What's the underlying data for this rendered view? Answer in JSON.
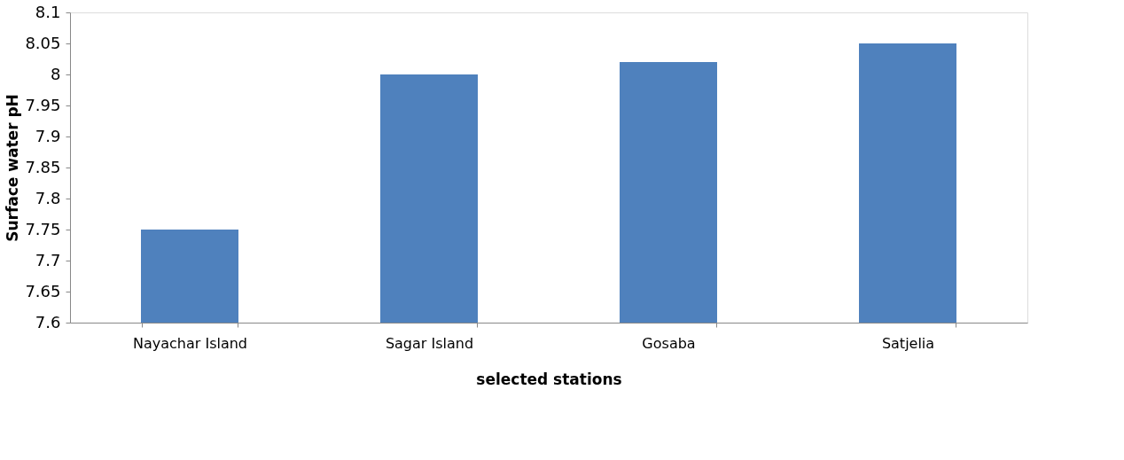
{
  "chart_data": {
    "type": "bar",
    "xlabel": "selected stations",
    "ylabel": "Surface water pH",
    "categories": [
      "Nayachar Island",
      "Sagar Island",
      "Gosaba",
      "Satjelia"
    ],
    "values": [
      7.75,
      8.0,
      8.02,
      8.05
    ],
    "color": "#4f81bd",
    "ylim": [
      7.6,
      8.1
    ],
    "yticks": [
      7.6,
      7.65,
      7.7,
      7.75,
      7.8,
      7.85,
      7.9,
      7.95,
      8,
      8.05,
      8.1
    ],
    "grid": false
  }
}
